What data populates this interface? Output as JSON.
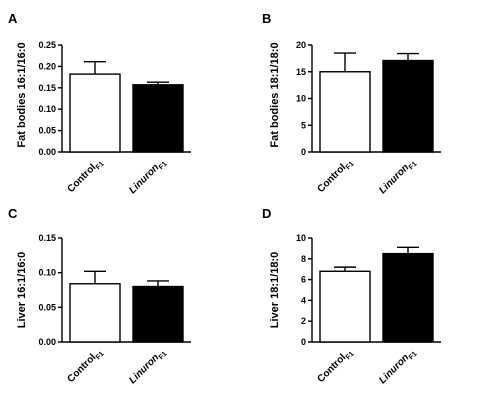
{
  "chart_data": [
    {
      "type": "bar",
      "panel": "A",
      "ylabel": "Fat bodies 16:1/16:0",
      "ylim": [
        0,
        0.25
      ],
      "yticks": [
        "0.00",
        "0.05",
        "0.10",
        "0.15",
        "0.20",
        "0.25"
      ],
      "categories": [
        {
          "main": "Control",
          "sub": "F1",
          "italic": false
        },
        {
          "main": "Linuron",
          "sub": "F1",
          "italic": true
        }
      ],
      "values": [
        0.182,
        0.157
      ],
      "errors": [
        0.029,
        0.006
      ],
      "fill_colors": [
        "#ffffff",
        "#000000"
      ]
    },
    {
      "type": "bar",
      "panel": "B",
      "ylabel": "Fat bodies 18:1/18:0",
      "ylim": [
        0,
        20
      ],
      "yticks": [
        "0",
        "5",
        "10",
        "15",
        "20"
      ],
      "categories": [
        {
          "main": "Control",
          "sub": "F1",
          "italic": false
        },
        {
          "main": "Linuron",
          "sub": "F1",
          "italic": true
        }
      ],
      "values": [
        15.0,
        17.1
      ],
      "errors": [
        3.5,
        1.3
      ],
      "fill_colors": [
        "#ffffff",
        "#000000"
      ]
    },
    {
      "type": "bar",
      "panel": "C",
      "ylabel": "Liver 16:1/16:0",
      "ylim": [
        0,
        0.15
      ],
      "yticks": [
        "0.00",
        "0.05",
        "0.10",
        "0.15"
      ],
      "categories": [
        {
          "main": "Control",
          "sub": "F1",
          "italic": false
        },
        {
          "main": "Linuron",
          "sub": "F1",
          "italic": true
        }
      ],
      "values": [
        0.084,
        0.08
      ],
      "errors": [
        0.018,
        0.008
      ],
      "fill_colors": [
        "#ffffff",
        "#000000"
      ]
    },
    {
      "type": "bar",
      "panel": "D",
      "ylabel": "Liver 18:1/18:0",
      "ylim": [
        0,
        10
      ],
      "yticks": [
        "0",
        "2",
        "4",
        "6",
        "8",
        "10"
      ],
      "categories": [
        {
          "main": "Control",
          "sub": "F1",
          "italic": false
        },
        {
          "main": "Linuron",
          "sub": "F1",
          "italic": true
        }
      ],
      "values": [
        6.8,
        8.5
      ],
      "errors": [
        0.4,
        0.6
      ],
      "fill_colors": [
        "#ffffff",
        "#000000"
      ]
    }
  ]
}
